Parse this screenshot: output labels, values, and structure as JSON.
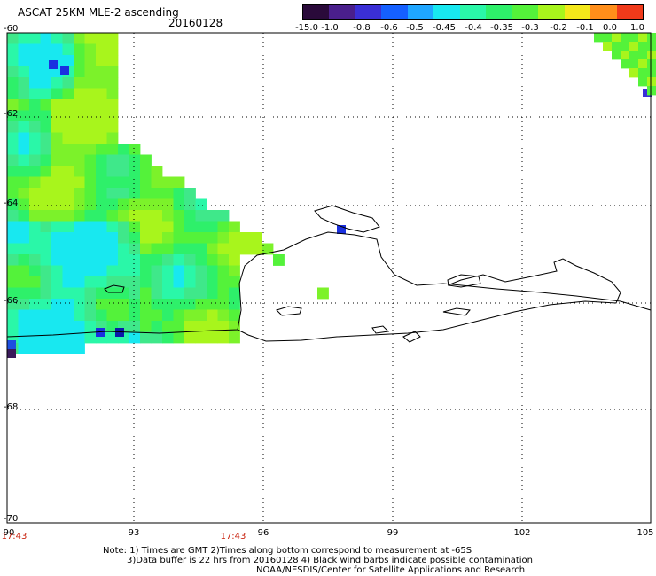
{
  "header": {
    "title": "ASCAT 25KM MLE-2 ascending",
    "date": "20160128"
  },
  "colorbar": {
    "tick_labels": [
      "-15.0",
      "-1.0",
      "-0.8",
      "-0.6",
      "-0.5",
      "-0.45",
      "-0.4",
      "-0.35",
      "-0.3",
      "-0.2",
      "-0.1",
      "0.0",
      "1.0"
    ],
    "colors": [
      "#2a0a3a",
      "#4a1f8c",
      "#3a2fd6",
      "#1560ff",
      "#1fa6ff",
      "#18e8f0",
      "#2af7a8",
      "#2ef06a",
      "#54f23a",
      "#a8f51c",
      "#f4e81a",
      "#ff8e1a",
      "#f03a1a"
    ]
  },
  "map": {
    "y_tick_labels": [
      "-60",
      "-62",
      "-64",
      "-66",
      "-68",
      "-70"
    ],
    "x_tick_labels": [
      "90",
      "93",
      "96",
      "99",
      "102",
      "105"
    ],
    "time_labels": [
      "17:43",
      "17:43"
    ]
  },
  "notes": {
    "line1": "Note: 1) Times are GMT 2)Times along bottom correspond to measurement at -65S",
    "line2": "3)Data buffer is 22 hrs from 20160128 4) Black wind barbs indicate possible contamination",
    "line3": "NOAA/NESDIS/Center for Satellite Applications and Research"
  }
}
